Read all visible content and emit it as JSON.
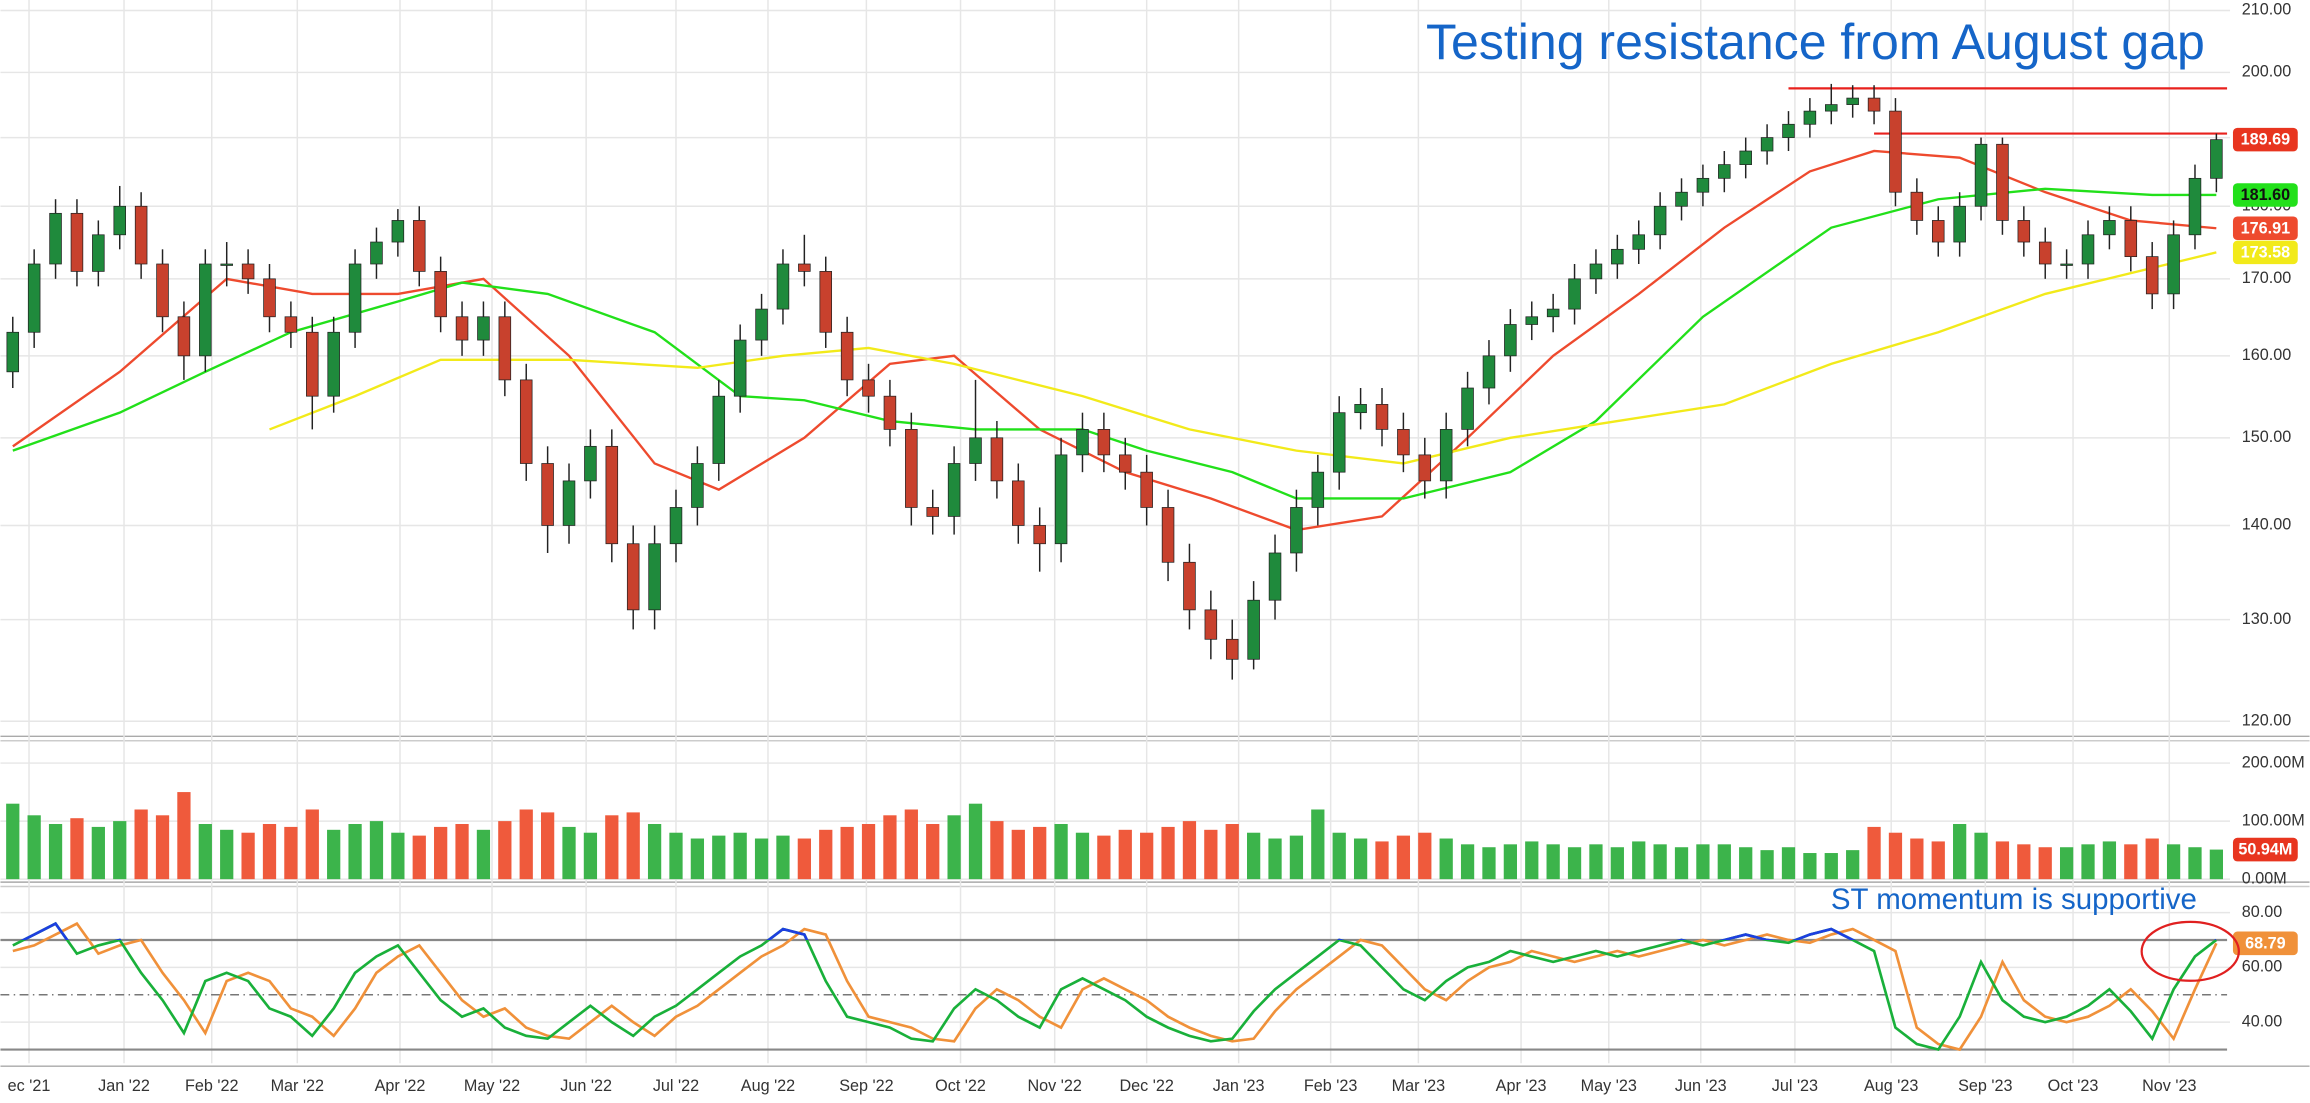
{
  "chart_data": [
    {
      "type": "candlestick",
      "title": "Testing resistance from August gap",
      "x": [
        0,
        1,
        2,
        3,
        4,
        5,
        6,
        7,
        8,
        9,
        10,
        11,
        12,
        13,
        14,
        15,
        16,
        17,
        18,
        19,
        20,
        21,
        22,
        23,
        24,
        25,
        26,
        27,
        28,
        29,
        30,
        31,
        32,
        33,
        34,
        35,
        36,
        37,
        38,
        39,
        40,
        41,
        42,
        43,
        44,
        45,
        46,
        47,
        48,
        49,
        50,
        51,
        52,
        53,
        54,
        55,
        56,
        57,
        58,
        59,
        60,
        61,
        62,
        63,
        64,
        65,
        66,
        67,
        68,
        69,
        70,
        71,
        72,
        73,
        74,
        75,
        76,
        77,
        78,
        79,
        80,
        81,
        82,
        83,
        84,
        85,
        86,
        87,
        88,
        89,
        90,
        91,
        92,
        93,
        94,
        95,
        96,
        97,
        98,
        99,
        100,
        101,
        102,
        103
      ],
      "open": [
        158,
        163,
        172,
        179,
        171,
        176,
        180,
        172,
        165,
        160,
        172,
        172,
        170,
        165,
        163,
        155,
        163,
        172,
        175,
        178,
        171,
        165,
        162,
        165,
        157,
        147,
        140,
        145,
        149,
        138,
        131,
        138,
        142,
        147,
        155,
        162,
        166,
        172,
        171,
        163,
        157,
        155,
        151,
        142,
        141,
        147,
        150,
        145,
        140,
        138,
        148,
        151,
        148,
        146,
        142,
        136,
        131,
        128,
        126,
        132,
        137,
        142,
        146,
        153,
        154,
        151,
        148,
        145,
        151,
        156,
        160,
        164,
        165,
        166,
        170,
        172,
        174,
        176,
        180,
        182,
        184,
        186,
        188,
        190,
        192,
        194,
        195,
        196,
        194,
        182,
        178,
        175,
        180,
        189,
        178,
        175,
        172,
        172,
        176,
        178,
        173,
        168,
        176,
        184
      ],
      "high": [
        165,
        174,
        181,
        181,
        178,
        182.9,
        182,
        174,
        167,
        174,
        175,
        174,
        172,
        167,
        165,
        165,
        174,
        177,
        179.6,
        180,
        173,
        167,
        167,
        167,
        159,
        149,
        147,
        151,
        151,
        140,
        140,
        144,
        149,
        157,
        164,
        168,
        174,
        176,
        173,
        165,
        159,
        157,
        153,
        144,
        149,
        157,
        152,
        147,
        142,
        150,
        153,
        153,
        150,
        148,
        144,
        138,
        133,
        130,
        134,
        139,
        144,
        148,
        155,
        156,
        156,
        153,
        150,
        153,
        158,
        162,
        166,
        167,
        168,
        172,
        174,
        176,
        178,
        182,
        184,
        186,
        188,
        190,
        192,
        194,
        196,
        198.2,
        198,
        198,
        196,
        184,
        180,
        182,
        190,
        190,
        180,
        177,
        174,
        178,
        180,
        180,
        175,
        178,
        186,
        190.6
      ],
      "low": [
        156,
        161,
        170,
        169,
        169,
        174,
        170,
        163,
        157,
        158,
        169,
        168,
        163,
        161,
        151,
        153,
        161,
        170,
        173,
        169,
        163,
        160,
        160,
        155,
        145,
        137,
        138,
        143,
        136,
        129,
        129,
        136,
        140,
        145,
        153,
        160,
        164,
        169,
        161,
        155,
        153,
        149,
        140,
        139,
        139,
        145,
        143,
        138,
        135,
        136,
        146,
        146,
        144,
        140,
        134,
        129,
        126,
        124,
        125,
        130,
        135,
        140,
        144,
        151,
        149,
        146,
        143,
        143,
        149,
        154,
        158,
        162,
        163,
        164,
        168,
        170,
        172,
        174,
        178,
        180,
        182,
        184,
        186,
        188,
        190,
        192,
        193,
        192,
        180,
        176,
        173,
        173,
        178,
        176,
        173,
        170,
        170,
        170,
        174,
        171,
        166,
        166,
        174,
        182
      ],
      "close": [
        163,
        172,
        179,
        171,
        176,
        180,
        172,
        165,
        160,
        172,
        172,
        170,
        165,
        163,
        155,
        163,
        172,
        175,
        178,
        171,
        165,
        162,
        165,
        157,
        147,
        140,
        145,
        149,
        138,
        131,
        138,
        142,
        147,
        155,
        162,
        166,
        172,
        171,
        163,
        157,
        155,
        151,
        142,
        141,
        147,
        150,
        145,
        140,
        138,
        148,
        151,
        148,
        146,
        142,
        136,
        131,
        128,
        126,
        132,
        137,
        142,
        146,
        153,
        154,
        151,
        148,
        145,
        151,
        156,
        160,
        164,
        165,
        166,
        170,
        172,
        174,
        176,
        180,
        182,
        184,
        186,
        188,
        190,
        192,
        194,
        195,
        196,
        194,
        182,
        178,
        175,
        180,
        189,
        178,
        175,
        172,
        172,
        176,
        178,
        173,
        168,
        176,
        184,
        189.69
      ],
      "last_label": "189.69",
      "label_color": "#e8351f",
      "up_color": "#1f8a3c",
      "down_color": "#c8412d",
      "series": [
        {
          "color": "#ee4a2e",
          "last_label": "176.91",
          "x": [
            0,
            5,
            10,
            14,
            18,
            22,
            26,
            30,
            33,
            37,
            41,
            44,
            48,
            52,
            56,
            60,
            64,
            68,
            72,
            76,
            80,
            84,
            87,
            91,
            95,
            99,
            103
          ],
          "values": [
            149,
            158,
            170,
            168,
            168,
            170,
            160,
            147,
            144,
            150,
            159,
            160,
            151,
            146,
            143,
            139.5,
            141,
            150,
            160,
            168,
            177,
            185,
            188,
            187,
            182,
            178,
            176.91
          ]
        },
        {
          "color": "#22e01a",
          "last_label": "181.60",
          "x": [
            0,
            5,
            9,
            13,
            18,
            21,
            25,
            30,
            34,
            37,
            41,
            45,
            50,
            53,
            57,
            60,
            65,
            70,
            74,
            79,
            85,
            90,
            95,
            100,
            103
          ],
          "values": [
            148.5,
            153,
            158,
            163,
            167,
            169.5,
            168,
            163,
            155,
            154.5,
            152,
            151,
            151,
            148.5,
            146,
            143,
            143,
            146,
            152,
            165,
            177,
            181,
            182.5,
            181.6,
            181.6
          ]
        },
        {
          "color": "#f2ea1a",
          "last_label": "173.58",
          "x": [
            12,
            16,
            20,
            26,
            32,
            36,
            40,
            44,
            50,
            55,
            60,
            65,
            70,
            75,
            80,
            85,
            90,
            95,
            103
          ],
          "values": [
            151,
            155,
            159.5,
            159.5,
            158.5,
            160,
            161,
            159,
            155,
            151,
            148.5,
            147,
            150,
            152,
            154,
            159,
            163,
            168,
            173.58
          ]
        }
      ],
      "hlines": [
        {
          "value": 197.5,
          "x": [
            83,
            103.5
          ]
        },
        {
          "value": 190.6,
          "x": [
            87,
            103.5
          ]
        }
      ],
      "hline_color": "#e8211d",
      "xlim": [
        -0.3,
        103.5
      ],
      "ylim": [
        119,
        211
      ],
      "log_scale": true,
      "grid": true,
      "yticks": [
        {
          "value": 120,
          "label": "120.00"
        },
        {
          "value": 130,
          "label": "130.00"
        },
        {
          "value": 140,
          "label": "140.00"
        },
        {
          "value": 150,
          "label": "150.00"
        },
        {
          "value": 160,
          "label": "160.00"
        },
        {
          "value": 170,
          "label": "170.00"
        },
        {
          "value": 180,
          "label": "180.00"
        },
        {
          "value": 190,
          "label": "190.00"
        },
        {
          "value": 200,
          "label": "200.00"
        },
        {
          "value": 210,
          "label": "210.00"
        }
      ]
    },
    {
      "type": "bar",
      "values": [
        130,
        110,
        95,
        105,
        90,
        100,
        120,
        110,
        150,
        95,
        85,
        80,
        95,
        90,
        120,
        85,
        95,
        100,
        80,
        75,
        90,
        95,
        85,
        100,
        120,
        115,
        90,
        80,
        110,
        115,
        95,
        80,
        70,
        75,
        80,
        70,
        75,
        70,
        85,
        90,
        95,
        110,
        120,
        95,
        110,
        130,
        100,
        85,
        90,
        95,
        80,
        75,
        85,
        80,
        90,
        100,
        85,
        95,
        80,
        70,
        75,
        120,
        80,
        70,
        65,
        75,
        80,
        70,
        60,
        55,
        60,
        65,
        60,
        55,
        60,
        55,
        65,
        60,
        55,
        60,
        60,
        55,
        50,
        55,
        45,
        45,
        50,
        90,
        80,
        70,
        65,
        95,
        80,
        65,
        60,
        55,
        55,
        60,
        65,
        60,
        70,
        60,
        55,
        50.94
      ],
      "last_label": "50.94M",
      "label_color": "#e8351f",
      "up_color": "#3cb44b",
      "down_color": "#ef5a3c",
      "ylim": [
        0,
        208
      ],
      "grid": true,
      "yticks": [
        {
          "value": 0,
          "label": "0.00M"
        },
        {
          "value": 100,
          "label": "100.00M"
        },
        {
          "value": 200,
          "label": "200.00M"
        }
      ]
    },
    {
      "type": "line",
      "annotation": "ST momentum is supportive",
      "series": [
        {
          "color": "#19b03a",
          "values": [
            68,
            72,
            76,
            65,
            68,
            70,
            58,
            48,
            36,
            55,
            58,
            55,
            45,
            42,
            35,
            45,
            58,
            64,
            68,
            58,
            48,
            42,
            45,
            38,
            35,
            34,
            40,
            46,
            40,
            35,
            42,
            46,
            52,
            58,
            64,
            68,
            74,
            72,
            55,
            42,
            40,
            38,
            34,
            33,
            45,
            52,
            48,
            42,
            38,
            52,
            56,
            52,
            48,
            42,
            38,
            35,
            33,
            34,
            44,
            52,
            58,
            64,
            70,
            68,
            60,
            52,
            48,
            55,
            60,
            62,
            66,
            64,
            62,
            64,
            66,
            64,
            66,
            68,
            70,
            68,
            70,
            72,
            70,
            69,
            72,
            74,
            70,
            66,
            38,
            32,
            30,
            42,
            62,
            48,
            42,
            40,
            42,
            46,
            52,
            44,
            34,
            52,
            64,
            70
          ]
        },
        {
          "color": "#f0913a",
          "last_label": "68.79",
          "values": [
            66,
            68,
            72,
            76,
            65,
            68,
            70,
            58,
            48,
            36,
            55,
            58,
            55,
            45,
            42,
            35,
            45,
            58,
            64,
            68,
            58,
            48,
            42,
            45,
            38,
            35,
            34,
            40,
            46,
            40,
            35,
            42,
            46,
            52,
            58,
            64,
            68,
            74,
            72,
            55,
            42,
            40,
            38,
            34,
            33,
            45,
            52,
            48,
            42,
            38,
            52,
            56,
            52,
            48,
            42,
            38,
            35,
            33,
            34,
            44,
            52,
            58,
            64,
            70,
            68,
            60,
            52,
            48,
            55,
            60,
            62,
            66,
            64,
            62,
            64,
            66,
            64,
            66,
            68,
            70,
            68,
            70,
            72,
            70,
            69,
            72,
            74,
            70,
            66,
            38,
            32,
            30,
            42,
            62,
            48,
            42,
            40,
            42,
            46,
            52,
            44,
            34,
            52,
            68.79
          ]
        }
      ],
      "overbought_color": "#1d3fe0",
      "levels": [
        30,
        50,
        70
      ],
      "ylim": [
        25,
        89
      ],
      "grid": true,
      "yticks": [
        {
          "value": 40,
          "label": "40.00"
        },
        {
          "value": 60,
          "label": "60.00"
        },
        {
          "value": 80,
          "label": "80.00"
        }
      ],
      "xticks": [
        {
          "value": 0.76,
          "label": "ec '21"
        },
        {
          "value": 5.2,
          "label": "Jan '22"
        },
        {
          "value": 9.3,
          "label": "Feb '22"
        },
        {
          "value": 13.3,
          "label": "Mar '22"
        },
        {
          "value": 18.1,
          "label": "Apr '22"
        },
        {
          "value": 22.4,
          "label": "May '22"
        },
        {
          "value": 26.8,
          "label": "Jun '22"
        },
        {
          "value": 31.0,
          "label": "Jul '22"
        },
        {
          "value": 35.3,
          "label": "Aug '22"
        },
        {
          "value": 39.9,
          "label": "Sep '22"
        },
        {
          "value": 44.3,
          "label": "Oct '22"
        },
        {
          "value": 48.7,
          "label": "Nov '22"
        },
        {
          "value": 53.0,
          "label": "Dec '22"
        },
        {
          "value": 57.3,
          "label": "Jan '23"
        },
        {
          "value": 61.6,
          "label": "Feb '23"
        },
        {
          "value": 65.7,
          "label": "Mar '23"
        },
        {
          "value": 70.5,
          "label": "Apr '23"
        },
        {
          "value": 74.6,
          "label": "May '23"
        },
        {
          "value": 78.9,
          "label": "Jun '23"
        },
        {
          "value": 83.3,
          "label": "Jul '23"
        },
        {
          "value": 87.8,
          "label": "Aug '23"
        },
        {
          "value": 92.2,
          "label": "Sep '23"
        },
        {
          "value": 96.3,
          "label": "Oct '23"
        },
        {
          "value": 100.8,
          "label": "Nov '23"
        }
      ]
    }
  ]
}
